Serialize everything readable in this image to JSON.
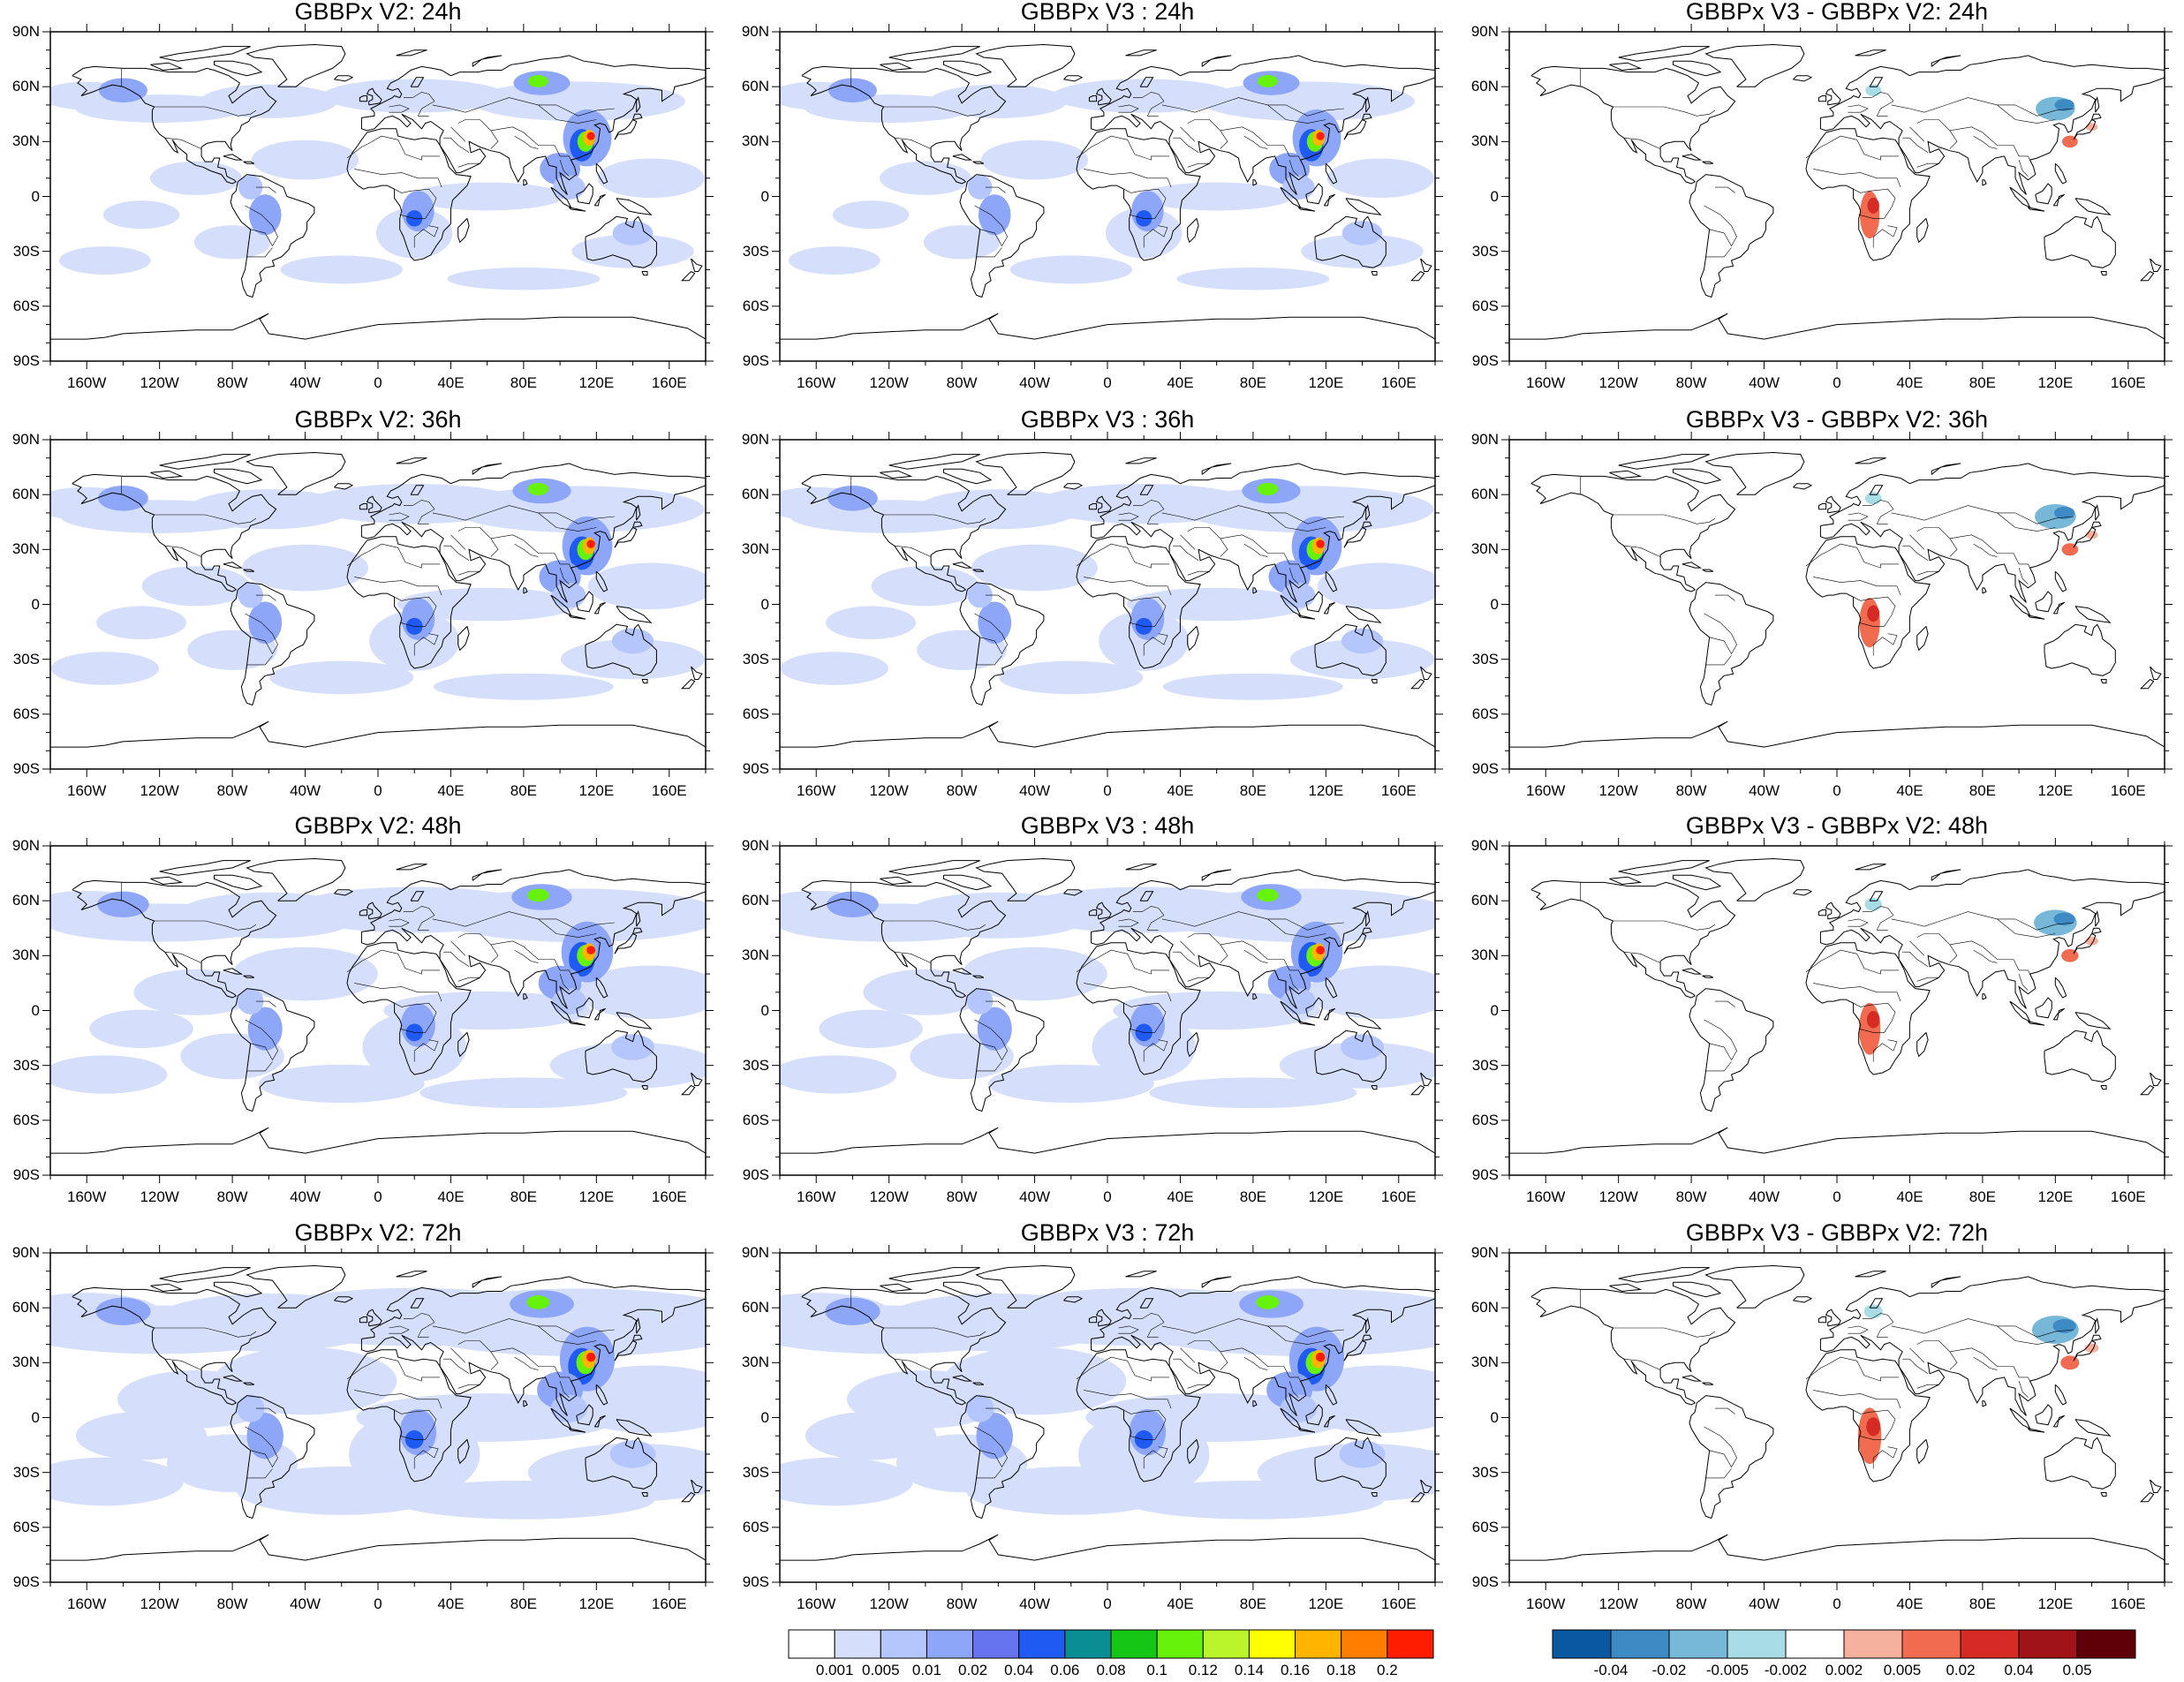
{
  "panels": [
    {
      "row": 0,
      "col": 0,
      "title": "GBBPx V2: 24h",
      "kind": "abs",
      "hours": 24
    },
    {
      "row": 0,
      "col": 1,
      "title": "GBBPx V3 : 24h",
      "kind": "abs",
      "hours": 24
    },
    {
      "row": 0,
      "col": 2,
      "title": "GBBPx V3 - GBBPx V2: 24h",
      "kind": "diff",
      "hours": 24
    },
    {
      "row": 1,
      "col": 0,
      "title": "GBBPx V2: 36h",
      "kind": "abs",
      "hours": 36
    },
    {
      "row": 1,
      "col": 1,
      "title": "GBBPx V3 : 36h",
      "kind": "abs",
      "hours": 36
    },
    {
      "row": 1,
      "col": 2,
      "title": "GBBPx V3 - GBBPx V2: 36h",
      "kind": "diff",
      "hours": 36
    },
    {
      "row": 2,
      "col": 0,
      "title": "GBBPx V2: 48h",
      "kind": "abs",
      "hours": 48
    },
    {
      "row": 2,
      "col": 1,
      "title": "GBBPx V3 : 48h",
      "kind": "abs",
      "hours": 48
    },
    {
      "row": 2,
      "col": 2,
      "title": "GBBPx V3 - GBBPx V2: 48h",
      "kind": "diff",
      "hours": 48
    },
    {
      "row": 3,
      "col": 0,
      "title": "GBBPx V2: 72h",
      "kind": "abs",
      "hours": 72
    },
    {
      "row": 3,
      "col": 1,
      "title": "GBBPx V3 : 72h",
      "kind": "abs",
      "hours": 72
    },
    {
      "row": 3,
      "col": 2,
      "title": "GBBPx V3 - GBBPx V2: 72h",
      "kind": "diff",
      "hours": 72
    }
  ],
  "lat_labels": [
    "90N",
    "60N",
    "30N",
    "0",
    "30S",
    "60S",
    "90S"
  ],
  "lon_labels": [
    "160W",
    "120W",
    "80W",
    "40W",
    "0",
    "40E",
    "80E",
    "120E",
    "160E"
  ],
  "colorbar_abs": {
    "colors": [
      "#ffffff",
      "#d5dffb",
      "#b4c6fb",
      "#8ea6f7",
      "#6675ef",
      "#1f5af3",
      "#0a8e93",
      "#16c616",
      "#67f20b",
      "#b9f52a",
      "#ffff00",
      "#ffb500",
      "#ff7d00",
      "#ff1d00"
    ],
    "tick_labels": [
      "0.001",
      "0.005",
      "0.01",
      "0.02",
      "0.04",
      "0.06",
      "0.08",
      "0.1",
      "0.12",
      "0.14",
      "0.16",
      "0.18",
      "0.2"
    ]
  },
  "colorbar_diff": {
    "colors": [
      "#0a58a0",
      "#3e8ac5",
      "#77b8d8",
      "#a8dce7",
      "#ffffff",
      "#f6b09e",
      "#f16b50",
      "#d42c25",
      "#a01319",
      "#5f0009"
    ],
    "tick_labels": [
      "-0.04",
      "-0.02",
      "-0.005",
      "-0.002",
      "0.002",
      "0.005",
      "0.02",
      "0.04",
      "0.05"
    ]
  },
  "colors": {
    "land_outline": "#000000",
    "frame": "#000000"
  }
}
